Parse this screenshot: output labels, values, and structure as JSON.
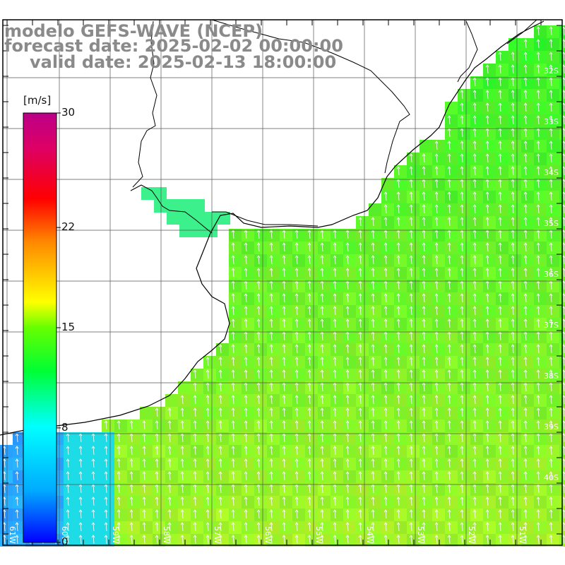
{
  "title": {
    "model": "modelo GEFS-WAVE (NCEP)",
    "forecast": "forecast date: 2025-02-02 00:00:00",
    "valid": "valid date: 2025-02-13 18:00:00"
  },
  "colorbar": {
    "unit": "[m/s]",
    "min": 0,
    "max": 30,
    "ticks": [
      {
        "value": 30,
        "label": "30"
      },
      {
        "value": 22,
        "label": "22"
      },
      {
        "value": 15,
        "label": "15"
      },
      {
        "value": 8,
        "label": "8"
      },
      {
        "value": 0,
        "label": "0"
      }
    ],
    "colors": [
      "#0000ff",
      "#00aaff",
      "#00ffff",
      "#00ff33",
      "#66ff00",
      "#ffff00",
      "#ff8800",
      "#ff0000",
      "#dd0066",
      "#bb0088"
    ]
  },
  "map": {
    "field": "wind speed",
    "vector_direction": "north",
    "lat_labels": [
      "32S",
      "33S",
      "34S",
      "35S",
      "36S",
      "37S",
      "38S",
      "39S",
      "40S"
    ],
    "lon_labels": [
      "61W",
      "60W",
      "59W",
      "58W",
      "57W",
      "56W",
      "55W",
      "54W",
      "53W",
      "52W",
      "51W"
    ]
  }
}
